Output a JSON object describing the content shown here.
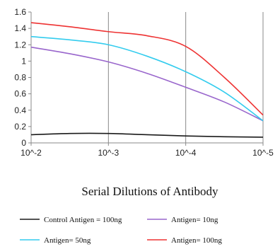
{
  "chart_data": {
    "type": "line",
    "title": "",
    "xlabel": "Serial Dilutions of Antibody",
    "ylabel": "",
    "x_ticks": [
      "10^-2",
      "10^-3",
      "10^-4",
      "10^-5"
    ],
    "x": [
      -2,
      -2.5,
      -3,
      -3.5,
      -4,
      -4.5,
      -5
    ],
    "ylim": [
      0,
      1.6
    ],
    "y_ticks": [
      "0",
      "0.2",
      "0.4",
      "0.6",
      "0.8",
      "1",
      "1.2",
      "1.4",
      "1.6"
    ],
    "grid": "vertical",
    "legend_position": "bottom",
    "series": [
      {
        "name": "Control Antigen = 100ng",
        "color": "#1a1a1a",
        "values": [
          0.1,
          0.115,
          0.115,
          0.1,
          0.085,
          0.075,
          0.07
        ]
      },
      {
        "name": "Antigen= 10ng",
        "color": "#9966cc",
        "values": [
          1.17,
          1.09,
          0.99,
          0.85,
          0.68,
          0.5,
          0.27
        ]
      },
      {
        "name": "Antigen= 50ng",
        "color": "#33ccee",
        "values": [
          1.3,
          1.26,
          1.2,
          1.06,
          0.87,
          0.62,
          0.27
        ]
      },
      {
        "name": "Antigen= 100ng",
        "color": "#ee3333",
        "values": [
          1.47,
          1.42,
          1.36,
          1.31,
          1.18,
          0.8,
          0.34
        ]
      }
    ]
  }
}
